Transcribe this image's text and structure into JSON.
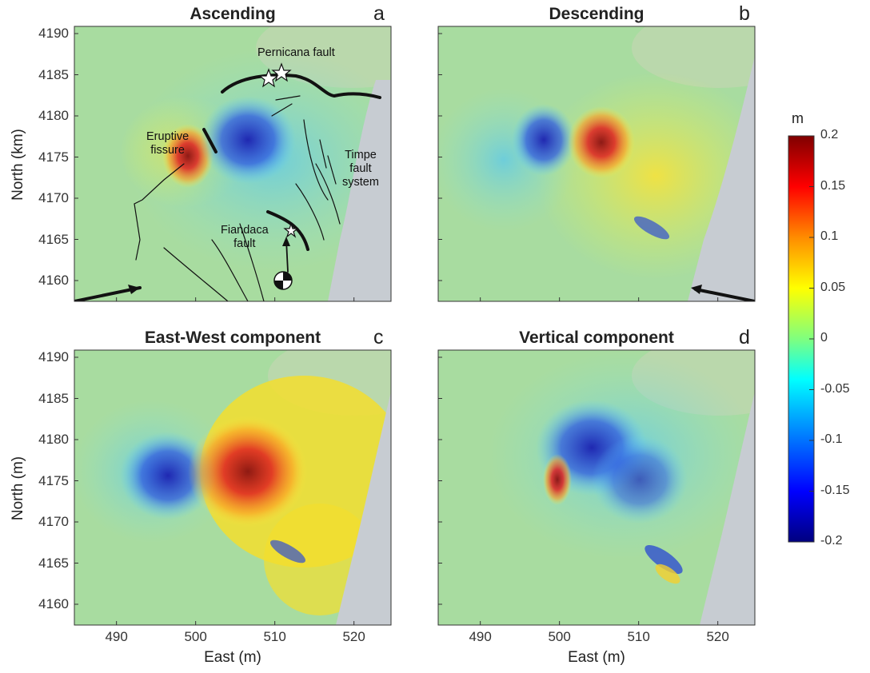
{
  "panels": [
    {
      "title": "Ascending",
      "letter": "a"
    },
    {
      "title": "Descending",
      "letter": "b"
    },
    {
      "title": "East-West component",
      "letter": "c"
    },
    {
      "title": "Vertical component",
      "letter": "d"
    }
  ],
  "axes": {
    "y_ticks": [
      "4190",
      "4185",
      "4180",
      "4175",
      "4170",
      "4165",
      "4160"
    ],
    "x_ticks": [
      "490",
      "500",
      "510",
      "520"
    ],
    "ylabel_top": "North (km)",
    "ylabel_bottom": "North (m)",
    "xlabel": "East (m)"
  },
  "annotations": {
    "pernicana": "Pernicana fault",
    "eruptive_1": "Eruptive",
    "eruptive_2": "fissure",
    "timpe_1": "Timpe",
    "timpe_2": "fault",
    "timpe_3": "system",
    "fiandaca_1": "Fiandaca",
    "fiandaca_2": "fault"
  },
  "colorbar": {
    "unit": "m",
    "ticks": [
      "0.2",
      "0.15",
      "0.1",
      "0.05",
      "0",
      "-0.05",
      "-0.1",
      "-0.15",
      "-0.2"
    ],
    "colormap": [
      "#00007f",
      "#0000ff",
      "#00a0ff",
      "#00ffff",
      "#7fff7f",
      "#ffff00",
      "#ff8c00",
      "#ff0000",
      "#7f0000"
    ]
  }
}
